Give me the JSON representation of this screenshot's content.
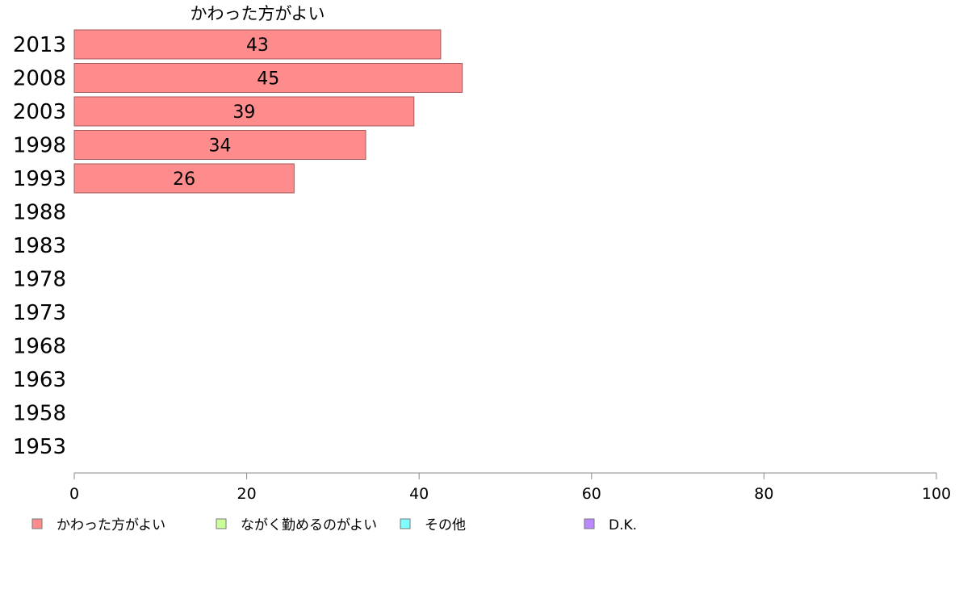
{
  "chart_data": {
    "type": "bar",
    "orientation": "horizontal",
    "title": "かわった方がよい",
    "categories": [
      "2013",
      "2008",
      "2003",
      "1998",
      "1993",
      "1988",
      "1983",
      "1978",
      "1973",
      "1968",
      "1963",
      "1958",
      "1953"
    ],
    "series": [
      {
        "name": "かわった方がよい",
        "values": [
          42.5,
          45,
          39.4,
          33.8,
          25.5,
          null,
          null,
          null,
          null,
          null,
          null,
          null,
          null
        ],
        "color": "#ff8c8c"
      }
    ],
    "data_labels": [
      "43",
      "45",
      "39",
      "34",
      "26",
      "",
      "",
      "",
      "",
      "",
      "",
      "",
      ""
    ],
    "xlim": [
      0,
      100
    ],
    "xticks": [
      0,
      20,
      40,
      60,
      80,
      100
    ],
    "grid": false,
    "legend_position": "bottom",
    "legend": [
      {
        "label": "かわった方がよい",
        "color": "#ff8c8c"
      },
      {
        "label": "ながく勤めるのがよい",
        "color": "#ccff99"
      },
      {
        "label": "その他",
        "color": "#80ffff"
      },
      {
        "label": "D.K.",
        "color": "#bb88ff"
      }
    ]
  }
}
